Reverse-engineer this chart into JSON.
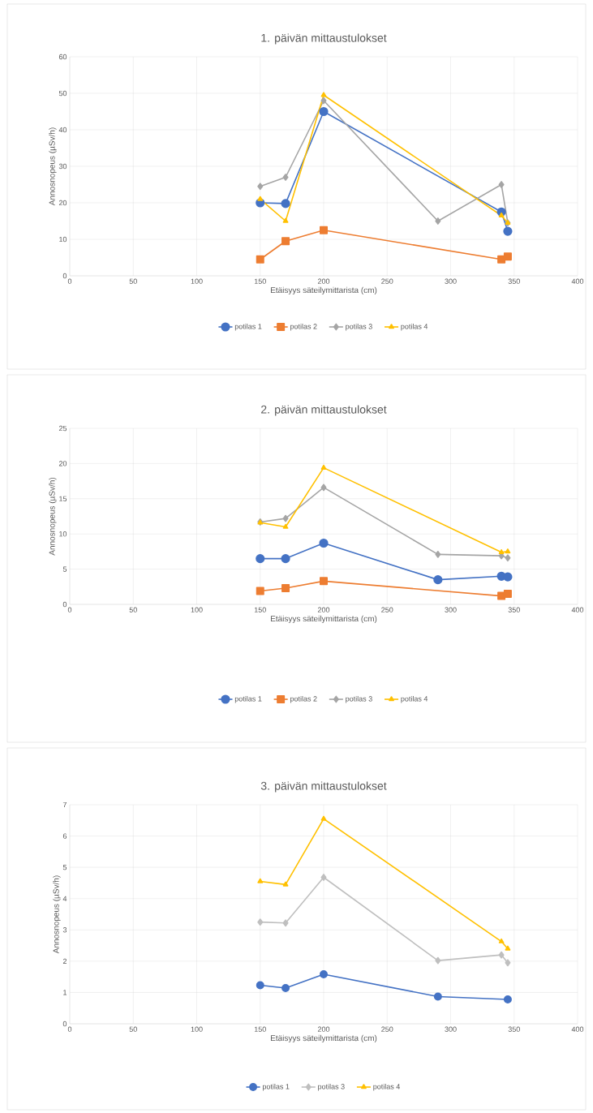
{
  "chart_data": [
    {
      "type": "line",
      "title": "1. päivän mittaustulokset",
      "xlabel": "Etäisyys säteilymittarista (cm)",
      "ylabel": "Annosnopeus (µSv/h)",
      "xlim": [
        0,
        400
      ],
      "xticks": [
        0,
        50,
        100,
        150,
        200,
        250,
        300,
        350,
        400
      ],
      "ylim": [
        0,
        60
      ],
      "yticks": [
        0,
        10,
        20,
        30,
        40,
        50,
        60
      ],
      "grid": true,
      "legend": "bottom",
      "series": [
        {
          "name": "potilas 1",
          "color": "#4472c4",
          "marker": "circle",
          "x": [
            150,
            170,
            200,
            340,
            345
          ],
          "values": [
            20,
            19.8,
            45,
            17.5,
            12.2
          ]
        },
        {
          "name": "potilas 2",
          "color": "#ed7d31",
          "marker": "square",
          "x": [
            150,
            170,
            200,
            340,
            345
          ],
          "values": [
            4.5,
            9.5,
            12.5,
            4.5,
            5.3
          ]
        },
        {
          "name": "potilas 3",
          "color": "#a5a5a5",
          "marker": "diamond",
          "x": [
            150,
            170,
            200,
            290,
            340,
            345
          ],
          "values": [
            24.5,
            27,
            48,
            15,
            25,
            14.5
          ]
        },
        {
          "name": "potilas 4",
          "color": "#ffc000",
          "marker": "triangle",
          "x": [
            150,
            170,
            200,
            340,
            345
          ],
          "values": [
            21,
            15,
            49.5,
            16.5,
            14.5
          ]
        }
      ]
    },
    {
      "type": "line",
      "title": "2. päivän mittaustulokset",
      "xlabel": "Etäisyys säteilymittarista (cm)",
      "ylabel": "Annosnopeus (µSv/h)",
      "xlim": [
        0,
        400
      ],
      "xticks": [
        0,
        50,
        100,
        150,
        200,
        250,
        300,
        350,
        400
      ],
      "ylim": [
        0,
        25
      ],
      "yticks": [
        0,
        5,
        10,
        15,
        20,
        25
      ],
      "grid": true,
      "legend": "bottom",
      "series": [
        {
          "name": "potilas 1",
          "color": "#4472c4",
          "marker": "circle",
          "x": [
            150,
            170,
            200,
            290,
            340,
            345
          ],
          "values": [
            6.5,
            6.5,
            8.7,
            3.5,
            4,
            3.9
          ]
        },
        {
          "name": "potilas 2",
          "color": "#ed7d31",
          "marker": "square",
          "x": [
            150,
            170,
            200,
            340,
            345
          ],
          "values": [
            1.9,
            2.3,
            3.3,
            1.2,
            1.5
          ]
        },
        {
          "name": "potilas 3",
          "color": "#a5a5a5",
          "marker": "diamond",
          "x": [
            150,
            170,
            200,
            290,
            340,
            345
          ],
          "values": [
            11.7,
            12.2,
            16.6,
            7.1,
            6.9,
            6.6
          ]
        },
        {
          "name": "potilas 4",
          "color": "#ffc000",
          "marker": "triangle",
          "x": [
            150,
            170,
            200,
            340,
            345
          ],
          "values": [
            11.6,
            11,
            19.4,
            7.4,
            7.5
          ]
        }
      ]
    },
    {
      "type": "line",
      "title": "3. päivän mittaustulokset",
      "xlabel": "Etäisyys säteilymittarista (cm)",
      "ylabel": "Annosnopeus (µSv/h)",
      "xlim": [
        0,
        400
      ],
      "xticks": [
        0,
        50,
        100,
        150,
        200,
        250,
        300,
        350,
        400
      ],
      "ylim": [
        0,
        7
      ],
      "yticks": [
        0,
        1,
        2,
        3,
        4,
        5,
        6,
        7
      ],
      "grid": true,
      "legend": "bottom",
      "series": [
        {
          "name": "potilas 1",
          "color": "#4472c4",
          "marker": "circle",
          "x": [
            150,
            170,
            200,
            290,
            345
          ],
          "values": [
            1.23,
            1.14,
            1.58,
            0.87,
            0.78
          ]
        },
        {
          "name": "potilas 3",
          "color": "#bfbfbf",
          "marker": "diamond",
          "x": [
            150,
            170,
            200,
            290,
            340,
            345
          ],
          "values": [
            3.25,
            3.22,
            4.68,
            2.02,
            2.2,
            1.95
          ]
        },
        {
          "name": "potilas 4",
          "color": "#ffc000",
          "marker": "triangle",
          "x": [
            150,
            170,
            200,
            340,
            345
          ],
          "values": [
            4.55,
            4.45,
            6.55,
            2.63,
            2.4
          ]
        }
      ]
    }
  ]
}
